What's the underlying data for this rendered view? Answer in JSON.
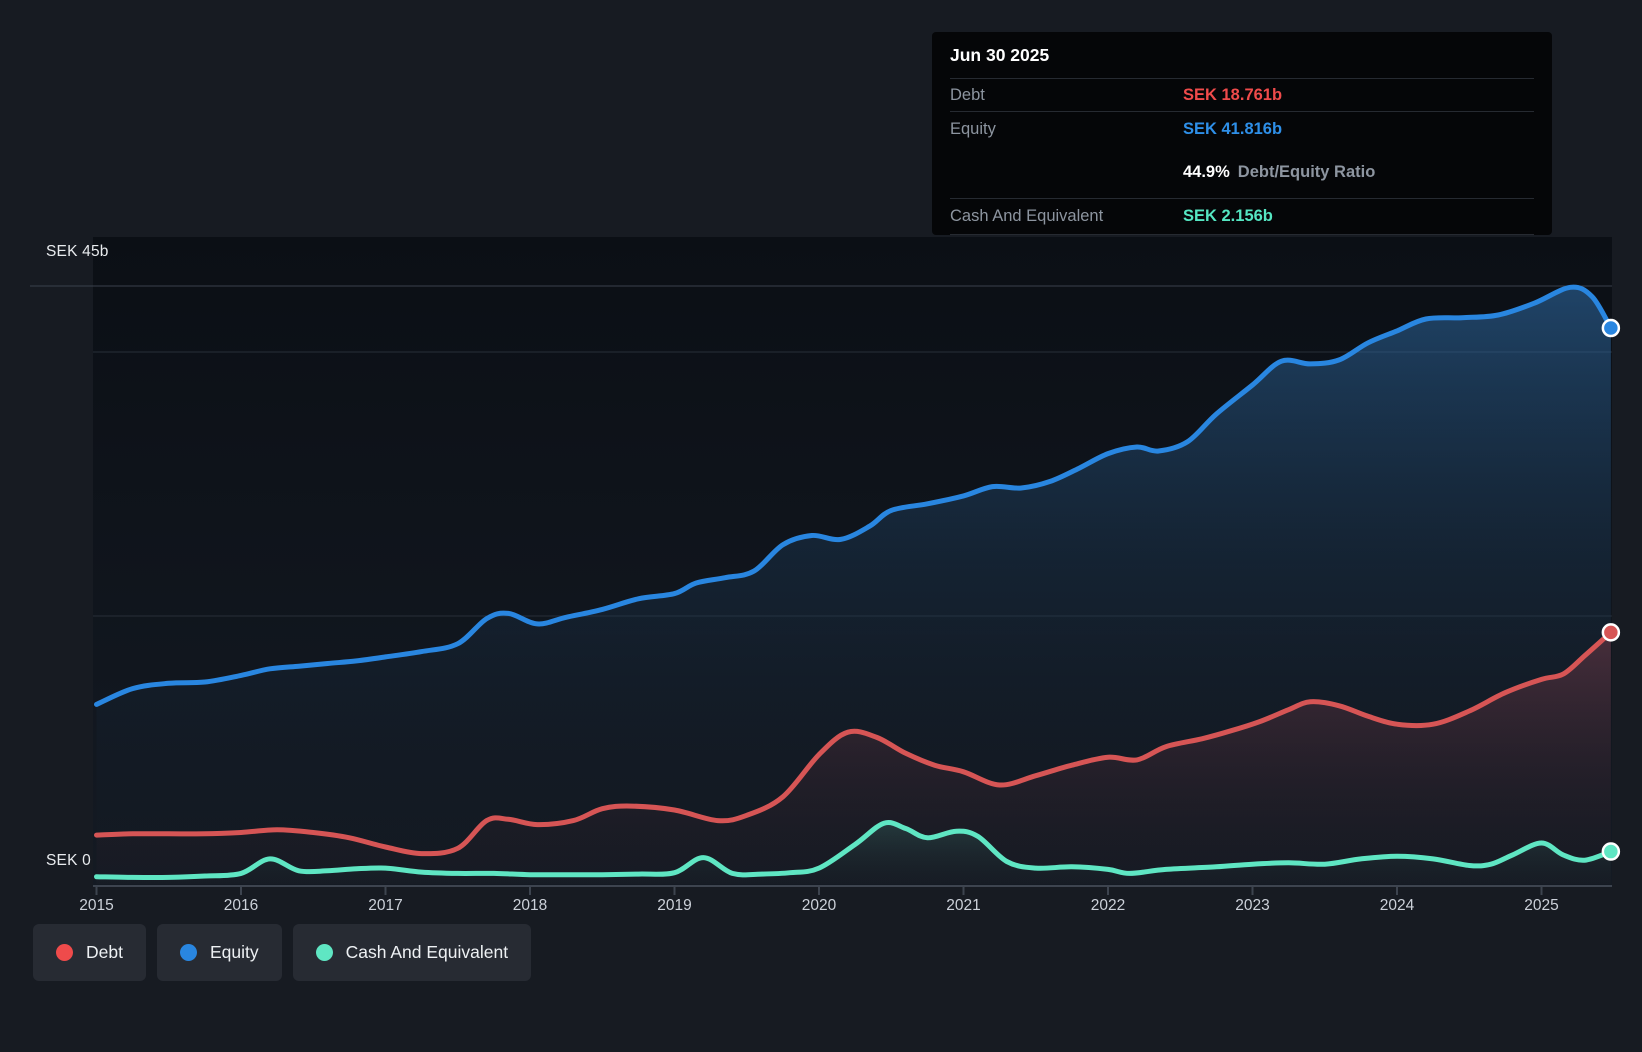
{
  "y_axis": {
    "top_label": "SEK 45b",
    "zero_label": "SEK 0"
  },
  "tooltip": {
    "date": "Jun 30 2025",
    "debt_label": "Debt",
    "debt_value": "SEK 18.761b",
    "equity_label": "Equity",
    "equity_value": "SEK 41.816b",
    "ratio_value": "44.9%",
    "ratio_label": "Debt/Equity Ratio",
    "cash_label": "Cash And Equivalent",
    "cash_value": "SEK 2.156b"
  },
  "legend": {
    "debt_label": "Debt",
    "equity_label": "Equity",
    "cash_label": "Cash And Equivalent"
  },
  "colors": {
    "debt": "#d65555",
    "equity": "#2986e0",
    "cash": "#5fe6c3",
    "debt_value_text": "#ef4b4b",
    "equity_value_text": "#2e8fe8",
    "cash_value_text": "#55e6c2",
    "grid_major": "#3a414c",
    "grid_minor": "#272e38",
    "axis": "#3d444f"
  },
  "chart_data": {
    "type": "area",
    "title": "Debt to Equity History (SEK billions)",
    "x_axis": {
      "min": 2015,
      "max": 2025.5,
      "ticks": [
        "2015",
        "2016",
        "2017",
        "2018",
        "2019",
        "2020",
        "2021",
        "2022",
        "2023",
        "2024",
        "2025"
      ]
    },
    "y_axis": {
      "min": 0,
      "max": 45,
      "unit": "SEK b",
      "top_label_value": 45,
      "gridline_values": [
        20,
        40,
        45
      ],
      "zero_label_value": 0
    },
    "legend_position": "bottom-left",
    "last_point": {
      "date": "Jun 30 2025",
      "debt": 18.761,
      "equity": 41.816,
      "cash": 2.156,
      "debt_equity_ratio_pct": 44.9
    },
    "series": [
      {
        "name": "Equity",
        "points": [
          [
            2015.0,
            13.3
          ],
          [
            2015.25,
            14.5
          ],
          [
            2015.5,
            14.9
          ],
          [
            2015.75,
            15.0
          ],
          [
            2016.0,
            15.5
          ],
          [
            2016.2,
            16.0
          ],
          [
            2016.4,
            16.2
          ],
          [
            2016.6,
            16.4
          ],
          [
            2016.8,
            16.6
          ],
          [
            2017.0,
            16.9
          ],
          [
            2017.25,
            17.3
          ],
          [
            2017.5,
            17.9
          ],
          [
            2017.7,
            19.8
          ],
          [
            2017.85,
            20.2
          ],
          [
            2018.05,
            19.4
          ],
          [
            2018.25,
            19.9
          ],
          [
            2018.5,
            20.5
          ],
          [
            2018.75,
            21.3
          ],
          [
            2019.0,
            21.7
          ],
          [
            2019.15,
            22.5
          ],
          [
            2019.35,
            22.9
          ],
          [
            2019.55,
            23.4
          ],
          [
            2019.75,
            25.4
          ],
          [
            2019.95,
            26.1
          ],
          [
            2020.15,
            25.8
          ],
          [
            2020.35,
            26.8
          ],
          [
            2020.5,
            28.0
          ],
          [
            2020.75,
            28.5
          ],
          [
            2021.0,
            29.1
          ],
          [
            2021.2,
            29.8
          ],
          [
            2021.4,
            29.7
          ],
          [
            2021.6,
            30.2
          ],
          [
            2021.8,
            31.2
          ],
          [
            2022.0,
            32.3
          ],
          [
            2022.2,
            32.8
          ],
          [
            2022.35,
            32.5
          ],
          [
            2022.55,
            33.2
          ],
          [
            2022.75,
            35.3
          ],
          [
            2023.0,
            37.5
          ],
          [
            2023.2,
            39.3
          ],
          [
            2023.4,
            39.1
          ],
          [
            2023.6,
            39.4
          ],
          [
            2023.8,
            40.7
          ],
          [
            2024.0,
            41.6
          ],
          [
            2024.2,
            42.5
          ],
          [
            2024.45,
            42.6
          ],
          [
            2024.7,
            42.8
          ],
          [
            2024.95,
            43.7
          ],
          [
            2025.2,
            44.9
          ],
          [
            2025.35,
            44.2
          ],
          [
            2025.48,
            41.816
          ]
        ]
      },
      {
        "name": "Debt",
        "points": [
          [
            2015.0,
            3.4
          ],
          [
            2015.25,
            3.5
          ],
          [
            2015.5,
            3.5
          ],
          [
            2015.75,
            3.5
          ],
          [
            2016.0,
            3.6
          ],
          [
            2016.25,
            3.8
          ],
          [
            2016.5,
            3.6
          ],
          [
            2016.75,
            3.2
          ],
          [
            2017.0,
            2.5
          ],
          [
            2017.25,
            2.0
          ],
          [
            2017.5,
            2.4
          ],
          [
            2017.7,
            4.5
          ],
          [
            2017.85,
            4.6
          ],
          [
            2018.05,
            4.2
          ],
          [
            2018.3,
            4.5
          ],
          [
            2018.5,
            5.4
          ],
          [
            2018.7,
            5.6
          ],
          [
            2019.0,
            5.3
          ],
          [
            2019.3,
            4.5
          ],
          [
            2019.5,
            4.9
          ],
          [
            2019.75,
            6.3
          ],
          [
            2020.0,
            9.5
          ],
          [
            2020.2,
            11.2
          ],
          [
            2020.4,
            10.8
          ],
          [
            2020.6,
            9.6
          ],
          [
            2020.8,
            8.7
          ],
          [
            2021.0,
            8.2
          ],
          [
            2021.25,
            7.2
          ],
          [
            2021.5,
            7.9
          ],
          [
            2021.75,
            8.7
          ],
          [
            2022.0,
            9.3
          ],
          [
            2022.2,
            9.1
          ],
          [
            2022.4,
            10.1
          ],
          [
            2022.65,
            10.7
          ],
          [
            2022.85,
            11.3
          ],
          [
            2023.05,
            12.0
          ],
          [
            2023.25,
            12.9
          ],
          [
            2023.4,
            13.5
          ],
          [
            2023.6,
            13.2
          ],
          [
            2023.8,
            12.4
          ],
          [
            2024.0,
            11.8
          ],
          [
            2024.25,
            11.8
          ],
          [
            2024.5,
            12.8
          ],
          [
            2024.75,
            14.2
          ],
          [
            2025.0,
            15.2
          ],
          [
            2025.15,
            15.6
          ],
          [
            2025.3,
            17.0
          ],
          [
            2025.48,
            18.761
          ]
        ]
      },
      {
        "name": "Cash And Equivalent",
        "points": [
          [
            2015.0,
            0.25
          ],
          [
            2015.25,
            0.2
          ],
          [
            2015.5,
            0.2
          ],
          [
            2015.75,
            0.3
          ],
          [
            2016.0,
            0.5
          ],
          [
            2016.2,
            1.6
          ],
          [
            2016.4,
            0.7
          ],
          [
            2016.6,
            0.7
          ],
          [
            2016.8,
            0.85
          ],
          [
            2017.0,
            0.9
          ],
          [
            2017.25,
            0.6
          ],
          [
            2017.5,
            0.5
          ],
          [
            2017.75,
            0.5
          ],
          [
            2018.0,
            0.4
          ],
          [
            2018.25,
            0.4
          ],
          [
            2018.5,
            0.4
          ],
          [
            2018.75,
            0.45
          ],
          [
            2019.0,
            0.55
          ],
          [
            2019.2,
            1.7
          ],
          [
            2019.4,
            0.5
          ],
          [
            2019.6,
            0.45
          ],
          [
            2019.8,
            0.55
          ],
          [
            2020.0,
            0.9
          ],
          [
            2020.25,
            2.7
          ],
          [
            2020.45,
            4.3
          ],
          [
            2020.6,
            3.9
          ],
          [
            2020.75,
            3.2
          ],
          [
            2020.95,
            3.7
          ],
          [
            2021.1,
            3.3
          ],
          [
            2021.3,
            1.4
          ],
          [
            2021.5,
            0.9
          ],
          [
            2021.75,
            1.0
          ],
          [
            2022.0,
            0.8
          ],
          [
            2022.15,
            0.5
          ],
          [
            2022.4,
            0.8
          ],
          [
            2022.75,
            1.0
          ],
          [
            2023.0,
            1.2
          ],
          [
            2023.25,
            1.3
          ],
          [
            2023.5,
            1.2
          ],
          [
            2023.75,
            1.6
          ],
          [
            2024.0,
            1.8
          ],
          [
            2024.25,
            1.6
          ],
          [
            2024.5,
            1.1
          ],
          [
            2024.65,
            1.2
          ],
          [
            2024.8,
            1.9
          ],
          [
            2025.0,
            2.8
          ],
          [
            2025.15,
            1.9
          ],
          [
            2025.3,
            1.5
          ],
          [
            2025.48,
            2.156
          ]
        ]
      }
    ]
  }
}
